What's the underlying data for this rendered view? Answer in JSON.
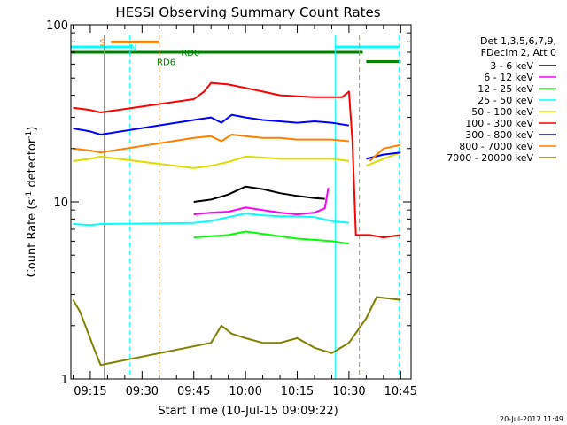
{
  "chart_data": {
    "type": "line",
    "title": "HESSI Observing Summary Count Rates",
    "xlabel": "Start Time (10-Jul-15 09:09:22)",
    "ylabel_main": "Count Rate (s",
    "ylabel_exp1": "-1",
    "ylabel_mid": " detector",
    "ylabel_exp2": "-1",
    "ylabel_end": ")",
    "y_scale": "log",
    "ylim": [
      1,
      100
    ],
    "xlim": [
      "09:09:22",
      "10:48:00"
    ],
    "y_ticks": [
      "1",
      "10",
      "100"
    ],
    "x_ticks": [
      "09:15",
      "09:30",
      "09:45",
      "10:00",
      "10:15",
      "10:30",
      "10:45"
    ],
    "grid": false,
    "legend_position": "right",
    "legend_header": [
      "Det 1,3,5,6,7,9,",
      "FDecim 2, Att 0"
    ],
    "series": [
      {
        "name": "3 - 6 keV",
        "color": "#000000",
        "points": [
          [
            "09:40:00",
            null
          ],
          [
            "09:43:00",
            null
          ],
          [
            "09:45:00",
            10.0
          ],
          [
            "09:50:00",
            10.3
          ],
          [
            "09:55:00",
            11.0
          ],
          [
            "10:00:00",
            12.2
          ],
          [
            "10:05:00",
            11.8
          ],
          [
            "10:10:00",
            11.2
          ],
          [
            "10:15:00",
            10.8
          ],
          [
            "10:20:00",
            10.5
          ],
          [
            "10:23:00",
            10.4
          ],
          [
            "10:25:00",
            null
          ]
        ]
      },
      {
        "name": "6 - 12 keV",
        "color": "#ff00ff",
        "points": [
          [
            "09:45:00",
            8.5
          ],
          [
            "09:50:00",
            8.7
          ],
          [
            "09:55:00",
            8.8
          ],
          [
            "10:00:00",
            9.3
          ],
          [
            "10:05:00",
            9.0
          ],
          [
            "10:10:00",
            8.7
          ],
          [
            "10:15:00",
            8.5
          ],
          [
            "10:20:00",
            8.7
          ],
          [
            "10:23:00",
            9.2
          ],
          [
            "10:24:00",
            12.0
          ]
        ]
      },
      {
        "name": "12 - 25 keV",
        "color": "#00ff00",
        "points": [
          [
            "09:45:00",
            6.3
          ],
          [
            "09:50:00",
            6.4
          ],
          [
            "09:55:00",
            6.5
          ],
          [
            "10:00:00",
            6.8
          ],
          [
            "10:05:00",
            6.6
          ],
          [
            "10:10:00",
            6.4
          ],
          [
            "10:15:00",
            6.2
          ],
          [
            "10:20:00",
            6.1
          ],
          [
            "10:25:00",
            6.0
          ],
          [
            "10:30:00",
            5.8
          ]
        ]
      },
      {
        "name": "25 - 50 keV",
        "color": "#00ffff",
        "points": [
          [
            "09:10:00",
            7.5
          ],
          [
            "09:15:00",
            7.4
          ],
          [
            "09:18:00",
            7.5
          ],
          [
            "09:45:00",
            7.6
          ],
          [
            "09:50:00",
            7.8
          ],
          [
            "09:55:00",
            8.2
          ],
          [
            "10:00:00",
            8.6
          ],
          [
            "10:05:00",
            8.4
          ],
          [
            "10:10:00",
            8.3
          ],
          [
            "10:15:00",
            8.3
          ],
          [
            "10:20:00",
            8.2
          ],
          [
            "10:25:00",
            7.8
          ],
          [
            "10:30:00",
            7.6
          ]
        ]
      },
      {
        "name": "50 - 100 keV",
        "color": "#dddd00",
        "points": [
          [
            "09:10:00",
            17.0
          ],
          [
            "09:15:00",
            17.5
          ],
          [
            "09:18:00",
            18.0
          ],
          [
            "09:45:00",
            15.5
          ],
          [
            "09:50:00",
            16.0
          ],
          [
            "09:55:00",
            16.8
          ],
          [
            "10:00:00",
            18.0
          ],
          [
            "10:05:00",
            17.8
          ],
          [
            "10:10:00",
            17.5
          ],
          [
            "10:15:00",
            17.5
          ],
          [
            "10:20:00",
            17.5
          ],
          [
            "10:25:00",
            17.5
          ],
          [
            "10:30:00",
            17.0
          ],
          [
            "10:33:00",
            null
          ],
          [
            "10:35:00",
            16.0
          ],
          [
            "10:40:00",
            17.5
          ],
          [
            "10:45:00",
            19.0
          ]
        ]
      },
      {
        "name": "100 - 300 keV",
        "color": "#ff0000",
        "points": [
          [
            "09:10:00",
            34.0
          ],
          [
            "09:15:00",
            33.0
          ],
          [
            "09:18:00",
            32.0
          ],
          [
            "09:45:00",
            38.0
          ],
          [
            "09:48:00",
            42.0
          ],
          [
            "09:50:00",
            47.0
          ],
          [
            "09:55:00",
            46.0
          ],
          [
            "10:00:00",
            44.0
          ],
          [
            "10:05:00",
            42.0
          ],
          [
            "10:10:00",
            40.0
          ],
          [
            "10:15:00",
            39.5
          ],
          [
            "10:20:00",
            39.0
          ],
          [
            "10:25:00",
            39.0
          ],
          [
            "10:28:00",
            39.0
          ],
          [
            "10:30:00",
            42.0
          ],
          [
            "10:31:00",
            22.0
          ],
          [
            "10:32:00",
            6.5
          ],
          [
            "10:36:00",
            6.5
          ],
          [
            "10:40:00",
            6.3
          ],
          [
            "10:45:00",
            6.5
          ]
        ]
      },
      {
        "name": "300 - 800 keV",
        "color": "#0000ff",
        "points": [
          [
            "09:10:00",
            26.0
          ],
          [
            "09:15:00",
            25.0
          ],
          [
            "09:18:00",
            24.0
          ],
          [
            "09:45:00",
            29.0
          ],
          [
            "09:50:00",
            30.0
          ],
          [
            "09:53:00",
            28.0
          ],
          [
            "09:56:00",
            31.0
          ],
          [
            "10:00:00",
            30.0
          ],
          [
            "10:05:00",
            29.0
          ],
          [
            "10:10:00",
            28.5
          ],
          [
            "10:15:00",
            28.0
          ],
          [
            "10:20:00",
            28.5
          ],
          [
            "10:25:00",
            28.0
          ],
          [
            "10:30:00",
            27.0
          ],
          [
            "10:33:00",
            null
          ],
          [
            "10:35:00",
            17.5
          ],
          [
            "10:40:00",
            18.5
          ],
          [
            "10:45:00",
            19.0
          ]
        ]
      },
      {
        "name": "800 - 7000 keV",
        "color": "#ff8000",
        "points": [
          [
            "09:10:00",
            20.0
          ],
          [
            "09:15:00",
            19.5
          ],
          [
            "09:18:00",
            19.0
          ],
          [
            "09:45:00",
            23.0
          ],
          [
            "09:50:00",
            23.5
          ],
          [
            "09:53:00",
            22.0
          ],
          [
            "09:56:00",
            24.0
          ],
          [
            "10:00:00",
            23.5
          ],
          [
            "10:05:00",
            23.0
          ],
          [
            "10:10:00",
            23.0
          ],
          [
            "10:15:00",
            22.5
          ],
          [
            "10:20:00",
            22.5
          ],
          [
            "10:25:00",
            22.5
          ],
          [
            "10:30:00",
            22.0
          ],
          [
            "10:33:00",
            null
          ],
          [
            "10:36:00",
            17.0
          ],
          [
            "10:40:00",
            20.0
          ],
          [
            "10:45:00",
            21.0
          ]
        ]
      },
      {
        "name": "7000 - 20000 keV",
        "color": "#808000",
        "points": [
          [
            "09:10:00",
            2.8
          ],
          [
            "09:12:00",
            2.4
          ],
          [
            "09:14:00",
            1.9
          ],
          [
            "09:16:00",
            1.5
          ],
          [
            "09:18:00",
            1.2
          ],
          [
            "09:50:00",
            1.6
          ],
          [
            "09:53:00",
            2.0
          ],
          [
            "09:56:00",
            1.8
          ],
          [
            "10:00:00",
            1.7
          ],
          [
            "10:05:00",
            1.6
          ],
          [
            "10:10:00",
            1.6
          ],
          [
            "10:15:00",
            1.7
          ],
          [
            "10:20:00",
            1.5
          ],
          [
            "10:25:00",
            1.4
          ],
          [
            "10:30:00",
            1.6
          ],
          [
            "10:35:00",
            2.2
          ],
          [
            "10:38:00",
            2.9
          ],
          [
            "10:45:00",
            2.8
          ]
        ]
      }
    ],
    "vertical_markers": [
      {
        "time": "09:19:00",
        "color": "#ff8000",
        "style": "solid"
      },
      {
        "time": "09:26:30",
        "color": "#00ffff",
        "style": "dashed"
      },
      {
        "time": "09:35:00",
        "color": "#ff8000",
        "style": "dashed"
      },
      {
        "time": "10:26:00",
        "color": "#00ffff",
        "style": "solid"
      },
      {
        "time": "10:33:00",
        "color": "#ff8000",
        "style": "dashed"
      },
      {
        "time": "10:44:30",
        "color": "#00ffff",
        "style": "dashed"
      }
    ],
    "flag_bars": [
      {
        "label": "S",
        "color": "#ff8000",
        "start": "09:21:00",
        "end": "09:35:00",
        "y": 80,
        "label_time": "09:18:30"
      },
      {
        "label": "N",
        "color": "#00ffff",
        "start": "09:09:22",
        "end": "09:27:00",
        "y": 75,
        "label_time": "09:27:30"
      },
      {
        "label": "",
        "color": "#00ffff",
        "start": "10:26:00",
        "end": "10:44:30",
        "y": 75,
        "label_time": null
      },
      {
        "label": "RD0",
        "color": "#008000",
        "start": "09:09:22",
        "end": "10:34:00",
        "y": 70,
        "label_time": "09:44:00"
      },
      {
        "label": "RD6",
        "color": "#008000",
        "start": "10:35:00",
        "end": "10:45:00",
        "y": 62,
        "label_time": "09:37:00"
      }
    ]
  },
  "footer_timestamp": "20-Jul-2017 11:49"
}
